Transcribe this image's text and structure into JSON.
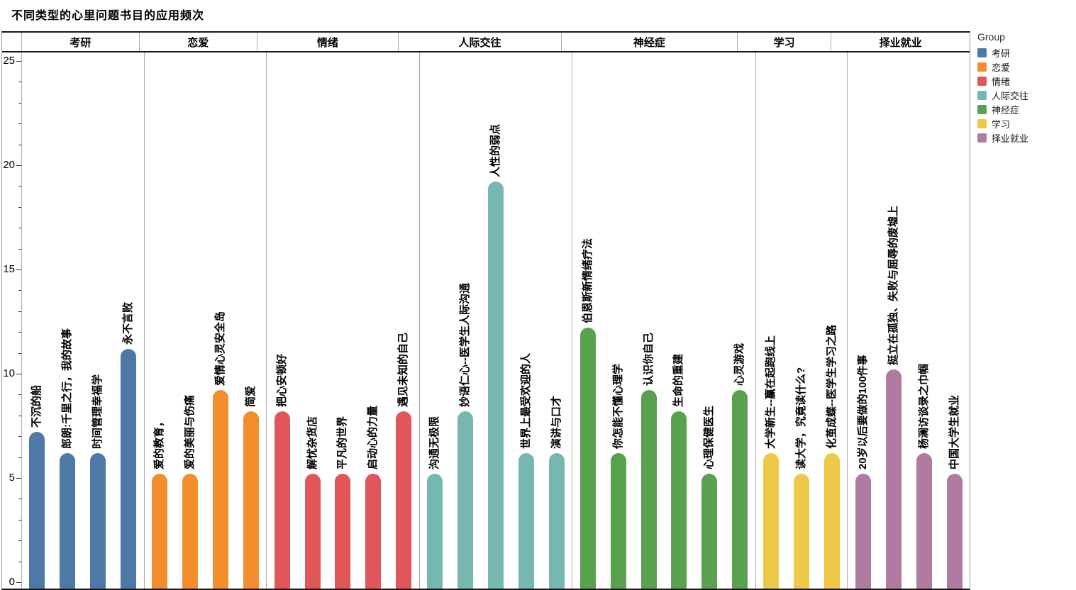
{
  "title": "不同类型的心里问题书目的应用频次",
  "chart_data": {
    "type": "bar",
    "title": "不同类型的心里问题书目的应用频次",
    "xlabel": "",
    "ylabel": "",
    "ylim": [
      0,
      25
    ],
    "y_ticks": [
      0,
      5,
      10,
      15,
      20,
      25
    ],
    "y_minor_tick_step": 1,
    "grid": false,
    "legend_title": "Group",
    "legend_position": "right",
    "groups": [
      {
        "name": "考研",
        "color": "#4E79A7",
        "bars": [
          {
            "label": "不沉的船",
            "value": 7
          },
          {
            "label": "郎朗:千里之行，我的故事",
            "value": 6
          },
          {
            "label": "时间管理幸福学",
            "value": 6
          },
          {
            "label": "永不言败",
            "value": 11
          }
        ]
      },
      {
        "name": "恋爱",
        "color": "#F28E2B",
        "bars": [
          {
            "label": "爱的教育，",
            "value": 5
          },
          {
            "label": "爱的美丽与伤痛",
            "value": 5
          },
          {
            "label": "爱情心灵安全岛",
            "value": 9
          },
          {
            "label": "简爱",
            "value": 8
          }
        ]
      },
      {
        "name": "情绪",
        "color": "#E15759",
        "bars": [
          {
            "label": "把心安顿好",
            "value": 8
          },
          {
            "label": "解忧杂货店",
            "value": 5
          },
          {
            "label": "平凡的世界",
            "value": 5
          },
          {
            "label": "启动心的力量",
            "value": 5
          },
          {
            "label": "遇见未知的自己",
            "value": 8
          }
        ]
      },
      {
        "name": "人际交往",
        "color": "#76B7B2",
        "bars": [
          {
            "label": "沟通无极限",
            "value": 5
          },
          {
            "label": "妙语仁心--医学生人际沟通",
            "value": 8
          },
          {
            "label": "人性的弱点",
            "value": 19
          },
          {
            "label": "世界上最受欢迎的人",
            "value": 6
          },
          {
            "label": "演讲与口才",
            "value": 6
          }
        ]
      },
      {
        "name": "神经症",
        "color": "#59A14F",
        "bars": [
          {
            "label": "伯恩斯新情绪疗法",
            "value": 12
          },
          {
            "label": "你怎能不懂心理学",
            "value": 6
          },
          {
            "label": "认识你自己",
            "value": 9
          },
          {
            "label": "生命的重建",
            "value": 8
          },
          {
            "label": "心理保健医生",
            "value": 5
          },
          {
            "label": "心灵游戏",
            "value": 9
          }
        ]
      },
      {
        "name": "学习",
        "color": "#EDC948",
        "bars": [
          {
            "label": "大学新生--赢在起跑线上",
            "value": 6
          },
          {
            "label": "读大学，究竟读什么?",
            "value": 5
          },
          {
            "label": "化茧成蝶--医学生学习之路",
            "value": 6
          }
        ]
      },
      {
        "name": "择业就业",
        "color": "#B07AA1",
        "bars": [
          {
            "label": "20岁以后要做的100件事",
            "value": 5
          },
          {
            "label": "挺立在孤独、失败与屈辱的废墟上",
            "value": 10
          },
          {
            "label": "杨澜访谈录之巾帼",
            "value": 6
          },
          {
            "label": "中国大学生就业",
            "value": 5
          }
        ]
      }
    ]
  }
}
